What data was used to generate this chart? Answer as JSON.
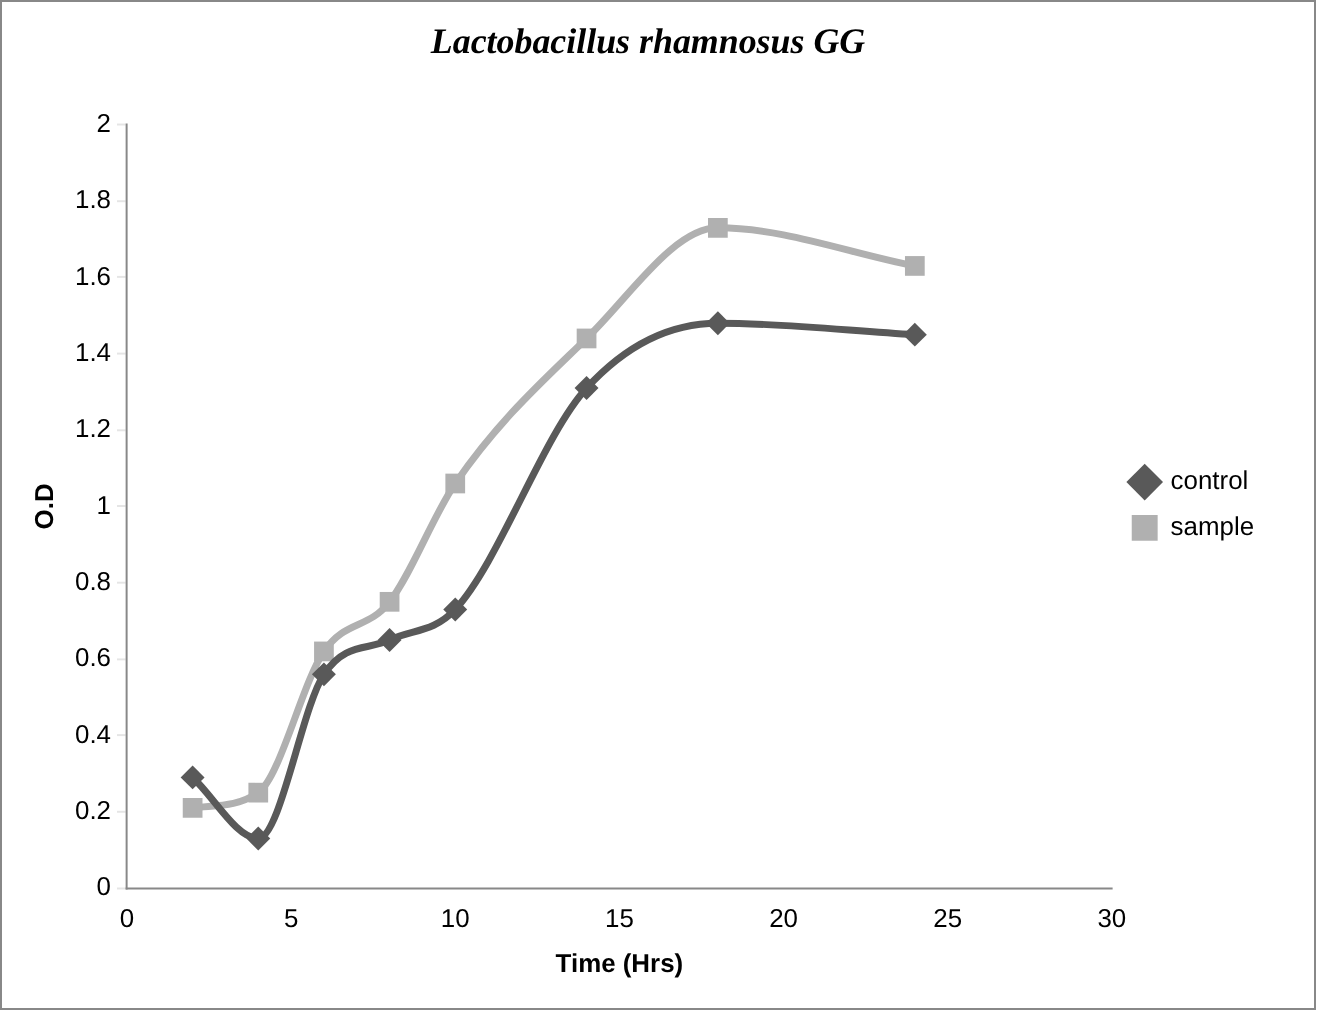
{
  "chart_data": {
    "type": "line",
    "title": "Lactobacillus rhamnosus GG",
    "xlabel": "Time (Hrs)",
    "ylabel": "O.D",
    "x": [
      2,
      4,
      6,
      8,
      10,
      14,
      18,
      24
    ],
    "series": [
      {
        "name": "control",
        "color": "#595959",
        "marker": "diamond",
        "values": [
          0.29,
          0.13,
          0.56,
          0.65,
          0.73,
          1.31,
          1.48,
          1.45
        ]
      },
      {
        "name": "sample",
        "color": "#b0b0b0",
        "marker": "square",
        "values": [
          0.21,
          0.25,
          0.62,
          0.75,
          1.06,
          1.44,
          1.73,
          1.63
        ]
      }
    ],
    "xlim": [
      0,
      30
    ],
    "xticks": [
      0,
      5,
      10,
      15,
      20,
      25,
      30
    ],
    "ylim": [
      0,
      2
    ],
    "yticks": [
      0,
      0.2,
      0.4,
      0.6,
      0.8,
      1,
      1.2,
      1.4,
      1.6,
      1.8,
      2
    ],
    "grid": false,
    "legend": "right",
    "line_style": "solid"
  }
}
